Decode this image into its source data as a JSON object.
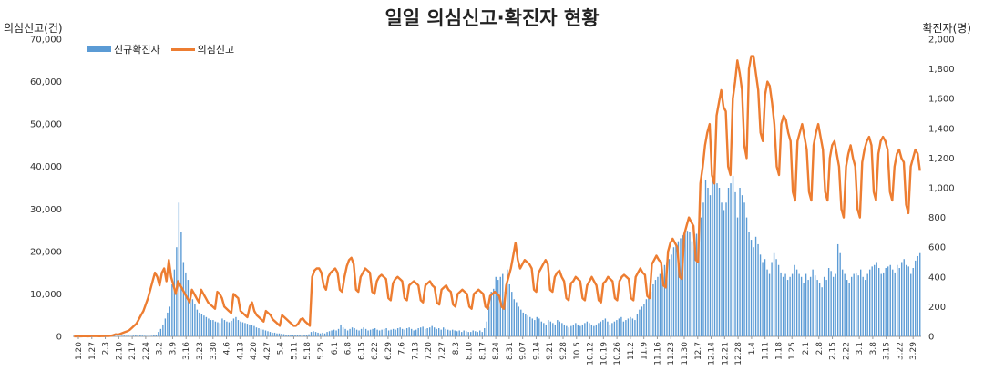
{
  "chart_data": {
    "type": "bar+line",
    "title": "일일 의심신고·확진자 현황",
    "y_left_label": "의심신고(건)",
    "y_right_label": "확진자(명)",
    "y_left_ticks": [
      "0",
      "10,000",
      "20,000",
      "30,000",
      "40,000",
      "50,000",
      "60,000",
      "70,000"
    ],
    "y_right_ticks": [
      "0",
      "200",
      "400",
      "600",
      "800",
      "1,000",
      "1,200",
      "1,400",
      "1,600",
      "1,800",
      "2,000"
    ],
    "ylim_left": [
      0,
      70000
    ],
    "ylim_right": [
      0,
      2000
    ],
    "grid": false,
    "legend_position": "top-left",
    "x_ticks": [
      "1.20",
      "1.27",
      "2.3",
      "2.10",
      "2.17",
      "2.24",
      "3.2",
      "3.9",
      "3.16",
      "3.23",
      "3.30",
      "4.6",
      "4.13",
      "4.20",
      "4.27",
      "5.4",
      "5.11",
      "5.18",
      "5.25",
      "6.1",
      "6.8",
      "6.15",
      "6.22",
      "6.29",
      "7.6",
      "7.13",
      "7.20",
      "7.27",
      "8.3",
      "8.10",
      "8.17",
      "8.24",
      "8.31",
      "9.07",
      "9.14",
      "9.21",
      "9.28",
      "10.5",
      "10.12",
      "10.19",
      "10.26",
      "11.2",
      "11.9",
      "11.16",
      "11.23",
      "11.30",
      "12.7",
      "12.14",
      "12.21",
      "12.28",
      "1.4",
      "1.11",
      "1.18",
      "1.25",
      "2.1",
      "2.8",
      "2.15",
      "2.22",
      "3.1",
      "3.8",
      "3.15",
      "3.22",
      "3.29"
    ],
    "series": [
      {
        "name": "신규확진자",
        "type": "bar",
        "axis": "right",
        "color": "#5B9BD5",
        "weekly_values": [
          1,
          3,
          8,
          5,
          10,
          250,
          900,
          350,
          160,
          140,
          120,
          80,
          40,
          25,
          15,
          10,
          20,
          30,
          40,
          60,
          50,
          45,
          45,
          50,
          60,
          55,
          40,
          40,
          30,
          30,
          280,
          380,
          250,
          150,
          120,
          100,
          80,
          70,
          75,
          85,
          100,
          130,
          160,
          250,
          420,
          620,
          680,
          1000,
          1050,
          950,
          650,
          600,
          450,
          420,
          400,
          380,
          450,
          400,
          420,
          440,
          480,
          480,
          500
        ],
        "daily_values": [
          1,
          1,
          1,
          1,
          1,
          1,
          1,
          1,
          1,
          1,
          1,
          1,
          1,
          1,
          1,
          1,
          2,
          3,
          3,
          2,
          3,
          4,
          5,
          4,
          4,
          3,
          5,
          6,
          7,
          6,
          5,
          4,
          3,
          3,
          4,
          8,
          12,
          30,
          50,
          80,
          120,
          160,
          200,
          350,
          450,
          600,
          900,
          700,
          500,
          430,
          380,
          300,
          250,
          220,
          180,
          160,
          150,
          140,
          130,
          120,
          110,
          110,
          100,
          95,
          90,
          120,
          110,
          100,
          95,
          105,
          120,
          130,
          110,
          100,
          95,
          90,
          85,
          80,
          75,
          70,
          60,
          55,
          50,
          45,
          40,
          35,
          30,
          25,
          25,
          20,
          20,
          18,
          15,
          12,
          10,
          10,
          8,
          8,
          10,
          12,
          8,
          10,
          12,
          14,
          30,
          35,
          30,
          25,
          20,
          25,
          20,
          30,
          35,
          40,
          45,
          40,
          50,
          80,
          60,
          50,
          40,
          50,
          60,
          55,
          45,
          40,
          50,
          60,
          50,
          40,
          45,
          50,
          55,
          45,
          40,
          45,
          50,
          55,
          40,
          45,
          50,
          45,
          55,
          60,
          50,
          45,
          55,
          60,
          50,
          40,
          45,
          55,
          60,
          65,
          50,
          55,
          60,
          70,
          60,
          50,
          55,
          45,
          60,
          50,
          45,
          40,
          45,
          40,
          35,
          40,
          30,
          40,
          35,
          30,
          30,
          40,
          35,
          30,
          40,
          30,
          55,
          100,
          200,
          300,
          320,
          400,
          380,
          400,
          420,
          300,
          450,
          350,
          300,
          250,
          230,
          200,
          180,
          160,
          150,
          140,
          130,
          120,
          110,
          130,
          120,
          100,
          90,
          80,
          110,
          100,
          90,
          80,
          110,
          100,
          90,
          80,
          70,
          60,
          70,
          80,
          90,
          80,
          70,
          80,
          90,
          100,
          90,
          80,
          70,
          80,
          90,
          100,
          110,
          120,
          100,
          80,
          90,
          100,
          110,
          120,
          130,
          100,
          110,
          120,
          130,
          120,
          110,
          150,
          180,
          200,
          220,
          250,
          260,
          300,
          350,
          380,
          400,
          420,
          450,
          480,
          500,
          520,
          550,
          600,
          620,
          640,
          660,
          680,
          700,
          710,
          700,
          640,
          660,
          690,
          720,
          800,
          900,
          1050,
          1000,
          950,
          1050,
          1080,
          1030,
          1000,
          900,
          850,
          900,
          1000,
          1030,
          1080,
          970,
          800,
          1000,
          950,
          900,
          800,
          700,
          650,
          600,
          670,
          620,
          550,
          500,
          520,
          450,
          420,
          500,
          560,
          520,
          480,
          430,
          400,
          420,
          380,
          400,
          420,
          480,
          450,
          420,
          400,
          360,
          420,
          380,
          400,
          450,
          410,
          380,
          360,
          330,
          400,
          380,
          460,
          440,
          400,
          420,
          620,
          560,
          450,
          420,
          380,
          360,
          400,
          420,
          430,
          410,
          450,
          400,
          380,
          420,
          450,
          470,
          480,
          500,
          460,
          420,
          430,
          460,
          470,
          480,
          450,
          430,
          480,
          460,
          500,
          520,
          480,
          470,
          420,
          460,
          510,
          540,
          560
        ]
      },
      {
        "name": "의심신고",
        "type": "line",
        "axis": "left",
        "color": "#ED7D31",
        "weekly_values": [
          30,
          50,
          150,
          800,
          3000,
          14000,
          15000,
          11000,
          10000,
          9000,
          8500,
          7000,
          5000,
          4000,
          3500,
          3500,
          14000,
          12000,
          14000,
          16000,
          14000,
          13000,
          12000,
          12500,
          11000,
          10500,
          10000,
          9500,
          9000,
          9000,
          15000,
          18000,
          17000,
          14000,
          12000,
          11000,
          10000,
          10500,
          11000,
          12000,
          12500,
          12000,
          14000,
          18000,
          20000,
          22000,
          26000,
          40000,
          50000,
          55000,
          55000,
          48000,
          38000,
          36000,
          35000,
          37000,
          34000,
          33000,
          32000,
          31000,
          36000,
          38000,
          32000
        ],
        "daily_values": [
          30,
          30,
          40,
          30,
          35,
          40,
          30,
          50,
          60,
          55,
          60,
          50,
          70,
          60,
          90,
          110,
          150,
          300,
          500,
          400,
          600,
          800,
          1000,
          1200,
          1500,
          2000,
          2500,
          3000,
          4000,
          5000,
          6000,
          7500,
          9000,
          11000,
          13000,
          15000,
          14000,
          12000,
          15000,
          16000,
          13000,
          18000,
          14000,
          12000,
          10000,
          13000,
          12000,
          11000,
          10000,
          9000,
          8000,
          11000,
          10000,
          9000,
          8000,
          11000,
          10000,
          9000,
          8000,
          7500,
          7000,
          6500,
          10500,
          10000,
          9000,
          7000,
          6500,
          6000,
          5500,
          10000,
          9500,
          9000,
          6000,
          5500,
          5000,
          4500,
          7000,
          8000,
          6000,
          5000,
          4500,
          4000,
          3500,
          6000,
          5500,
          5000,
          4000,
          3500,
          3000,
          2500,
          5000,
          4500,
          4000,
          3500,
          3000,
          2500,
          2500,
          3000,
          4000,
          4200,
          3500,
          3000,
          2500,
          14000,
          15500,
          16000,
          16000,
          15000,
          12000,
          11000,
          14000,
          15000,
          15500,
          16000,
          15000,
          11000,
          10500,
          14000,
          16500,
          18000,
          18500,
          17000,
          11000,
          10500,
          14000,
          15000,
          16000,
          15500,
          15000,
          10500,
          10000,
          13000,
          14000,
          14500,
          14000,
          13500,
          9000,
          8500,
          12500,
          13500,
          14000,
          13500,
          13000,
          9000,
          8500,
          12000,
          12500,
          13000,
          12500,
          12000,
          8500,
          8000,
          12000,
          12500,
          13000,
          12000,
          11500,
          8000,
          7500,
          11000,
          11500,
          12000,
          11000,
          10500,
          7500,
          7000,
          10000,
          10500,
          11000,
          10500,
          10000,
          7000,
          6500,
          10000,
          10500,
          11000,
          10500,
          10000,
          7000,
          6500,
          9500,
          10000,
          10500,
          10000,
          9500,
          7000,
          6500,
          12000,
          14000,
          16000,
          19000,
          22000,
          18000,
          16000,
          17000,
          18000,
          17500,
          17000,
          16000,
          11000,
          10500,
          15000,
          16000,
          17000,
          18000,
          17000,
          11000,
          10500,
          14000,
          15000,
          15500,
          14000,
          13000,
          9000,
          8500,
          12500,
          13000,
          14000,
          13500,
          13000,
          9000,
          8500,
          12000,
          13000,
          14000,
          13000,
          12000,
          8500,
          8000,
          12500,
          13000,
          14000,
          13500,
          13000,
          9000,
          8500,
          13000,
          14000,
          14500,
          14000,
          13500,
          9000,
          8500,
          14000,
          15000,
          16000,
          15000,
          14500,
          9500,
          9000,
          17000,
          18000,
          19000,
          18000,
          17500,
          12000,
          11500,
          20000,
          22000,
          23000,
          22000,
          21000,
          14000,
          13500,
          24000,
          26000,
          28000,
          27000,
          26000,
          18000,
          17500,
          36000,
          40000,
          45000,
          48000,
          50000,
          38000,
          36000,
          52000,
          55000,
          58000,
          54000,
          53000,
          40000,
          38000,
          56000,
          60000,
          65000,
          62000,
          58000,
          45000,
          42000,
          63000,
          66000,
          66000,
          62000,
          58000,
          48000,
          46000,
          57000,
          60000,
          59000,
          55000,
          50000,
          40000,
          38000,
          50000,
          52000,
          51000,
          48000,
          46000,
          34000,
          32000,
          46000,
          48000,
          50000,
          47000,
          44000,
          34000,
          32000,
          45000,
          48000,
          50000,
          47000,
          44000,
          34000,
          32000,
          42000,
          45000,
          46000,
          43000,
          40000,
          30000,
          28000,
          40000,
          43000,
          45000,
          42000,
          40000,
          30000,
          28000,
          41000,
          44000,
          46000,
          47000,
          45000,
          34000,
          32000,
          43000,
          46000,
          47000,
          46000,
          44000,
          34000,
          32000,
          40000,
          43000,
          44000,
          42000,
          41000,
          31000,
          29000,
          40000,
          42000,
          44000,
          43000,
          39000
        ]
      }
    ]
  },
  "legend": {
    "bar_label": "신규확진자",
    "line_label": "의심신고"
  }
}
